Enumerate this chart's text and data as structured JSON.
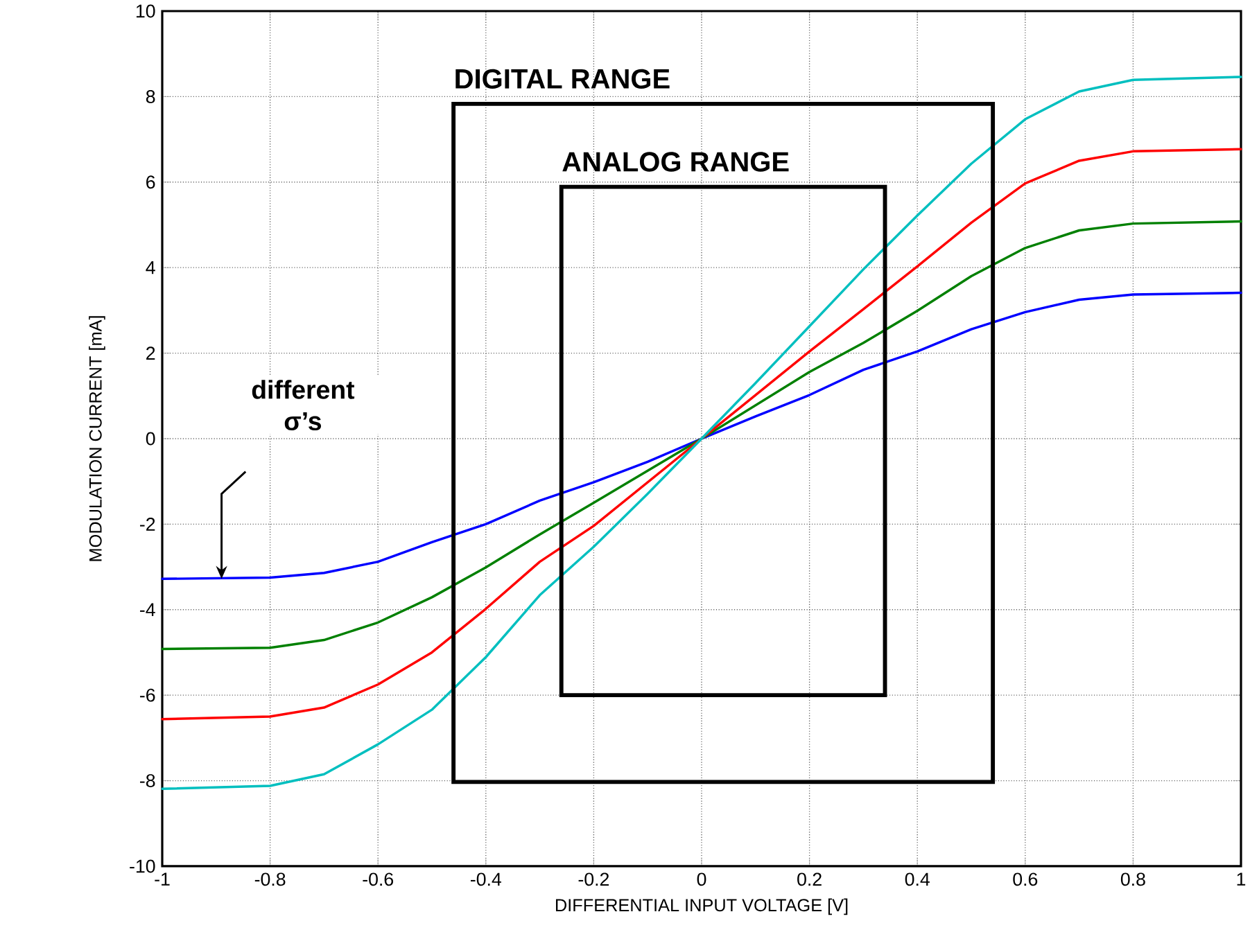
{
  "chart_data": {
    "type": "line",
    "xlabel": "DIFFERENTIAL INPUT VOLTAGE [V]",
    "ylabel": "MODULATION CURRENT [mA]",
    "x": [
      -1,
      -0.8,
      -0.7,
      -0.6,
      -0.5,
      -0.4,
      -0.3,
      -0.2,
      -0.1,
      0,
      0.1,
      0.2,
      0.3,
      0.4,
      0.5,
      0.6,
      0.7,
      0.8,
      1
    ],
    "series": [
      {
        "color": "#0000ff",
        "values": [
          -3.28,
          -3.25,
          -3.14,
          -2.88,
          -2.42,
          -2.0,
          -1.45,
          -1.02,
          -0.54,
          0,
          0.52,
          1.02,
          1.61,
          2.04,
          2.56,
          2.96,
          3.25,
          3.37,
          3.41
        ]
      },
      {
        "color": "#008000",
        "values": [
          -4.92,
          -4.89,
          -4.71,
          -4.3,
          -3.71,
          -3.01,
          -2.24,
          -1.5,
          -0.75,
          0,
          0.78,
          1.56,
          2.24,
          2.99,
          3.8,
          4.46,
          4.87,
          5.03,
          5.08
        ]
      },
      {
        "color": "#ff0000",
        "values": [
          -6.56,
          -6.5,
          -6.29,
          -5.75,
          -5.0,
          -3.98,
          -2.88,
          -2.04,
          -1.02,
          0,
          1.02,
          2.04,
          3.03,
          4.03,
          5.05,
          5.97,
          6.5,
          6.72,
          6.77
        ]
      },
      {
        "color": "#00bfbf",
        "values": [
          -8.19,
          -8.12,
          -7.85,
          -7.15,
          -6.34,
          -5.11,
          -3.66,
          -2.53,
          -1.29,
          0,
          1.3,
          2.63,
          3.96,
          5.22,
          6.43,
          7.47,
          8.12,
          8.39,
          8.46
        ]
      }
    ],
    "annotations": [
      "DIGITAL RANGE",
      "ANALOG RANGE",
      "different σ’s"
    ],
    "xlim": [
      -1,
      1
    ],
    "ylim": [
      -10,
      10
    ],
    "xticks": [
      -1,
      -0.8,
      -0.6,
      -0.4,
      -0.2,
      0,
      0.2,
      0.4,
      0.6,
      0.8,
      1
    ],
    "yticks": [
      -10,
      -8,
      -6,
      -4,
      -2,
      0,
      2,
      4,
      6,
      8,
      10
    ],
    "grid": true,
    "marker": "none",
    "line_style": "solid"
  }
}
